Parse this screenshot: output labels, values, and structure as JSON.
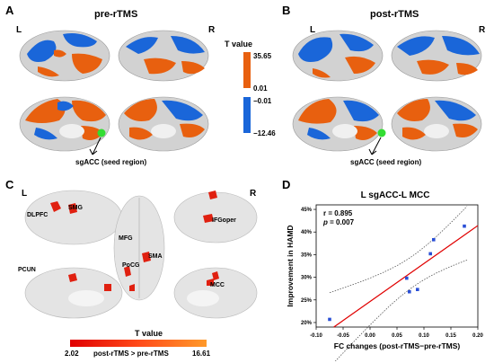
{
  "panels": {
    "A": {
      "letter": "A",
      "title": "pre-rTMS",
      "left": "L",
      "right": "R",
      "seed_label": "sgACC (seed region)"
    },
    "B": {
      "letter": "B",
      "title": "post-rTMS",
      "left": "L",
      "right": "R",
      "seed_label": "sgACC (seed region)"
    },
    "C": {
      "letter": "C",
      "left": "L",
      "right": "R",
      "regions": {
        "dlpfc": "DLPFC",
        "smg": "SMG",
        "ifg": "IFGoper",
        "mfg": "MFG",
        "poce": "PoCG",
        "sma": "SMA",
        "pcun": "PCUN",
        "mcc": "MCC"
      },
      "colorbar": {
        "title": "T value",
        "min": "2.02",
        "caption": "post-rTMS > pre-rTMS",
        "max": "16.61"
      }
    },
    "D": {
      "letter": "D"
    }
  },
  "legend": {
    "title": "T value",
    "labels": {
      "max": "35.65",
      "pos_min": "0.01",
      "neg_max": "−0.01",
      "neg_min": "−12.46"
    },
    "colors": {
      "positive": "#e8600f",
      "negative": "#1a66d9"
    }
  },
  "chart_data": {
    "type": "scatter",
    "title": "L sgACC-L MCC",
    "xlabel": "FC changes (post-rTMS−pre-rTMS)",
    "ylabel": "Improvement in HAMD",
    "annotation_r": "r = 0.895",
    "annotation_p_label": "p",
    "annotation_p_value": " = 0.007",
    "xlim": [
      -0.1,
      0.2
    ],
    "ylim": [
      0.19,
      0.46
    ],
    "xticks": [
      "-0.10",
      "-0.05",
      "0.00",
      "0.05",
      "0.10",
      "0.15",
      "0.20"
    ],
    "yticks": [
      "20%",
      "25%",
      "30%",
      "35%",
      "40%",
      "45%"
    ],
    "points": [
      {
        "x": -0.075,
        "y": 0.207
      },
      {
        "x": 0.068,
        "y": 0.298
      },
      {
        "x": 0.073,
        "y": 0.268
      },
      {
        "x": 0.088,
        "y": 0.273
      },
      {
        "x": 0.112,
        "y": 0.352
      },
      {
        "x": 0.118,
        "y": 0.383
      },
      {
        "x": 0.175,
        "y": 0.413
      }
    ],
    "colors": {
      "points": "#2a4fd6",
      "fit": "#e00000",
      "ci": "#555555"
    }
  }
}
